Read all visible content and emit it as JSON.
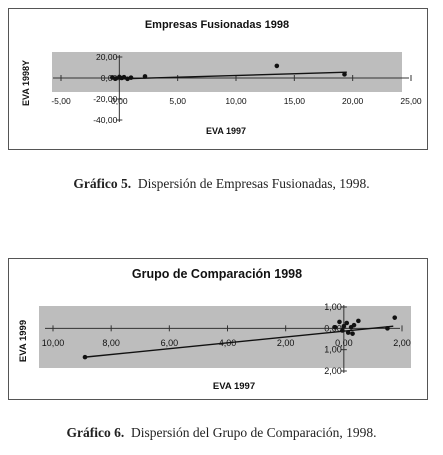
{
  "chart_data": [
    {
      "type": "scatter",
      "title": "Empresas Fusionadas 1998",
      "xlabel": "EVA 1997",
      "ylabel": "EVA 1998Y",
      "xlim": [
        -5,
        25
      ],
      "ylim": [
        -40,
        20
      ],
      "x_ticks": [
        -5,
        0,
        5,
        10,
        15,
        20,
        25
      ],
      "x_tick_labels": [
        "-5,00",
        "0,00",
        "5,00",
        "10,00",
        "15,00",
        "20,00",
        "25,00"
      ],
      "y_ticks": [
        20,
        0,
        -20,
        -40
      ],
      "y_tick_labels": [
        "20,00",
        "0,00",
        "-20,00",
        "-40,00"
      ],
      "points": [
        {
          "x": -0.6,
          "y": 0.5
        },
        {
          "x": -0.3,
          "y": -0.5
        },
        {
          "x": 0.0,
          "y": 1.0
        },
        {
          "x": 0.2,
          "y": 0.0
        },
        {
          "x": 0.4,
          "y": 0.8
        },
        {
          "x": 0.7,
          "y": -0.8
        },
        {
          "x": 1.0,
          "y": 0.3
        },
        {
          "x": 2.2,
          "y": 1.5
        },
        {
          "x": 13.5,
          "y": 11.5
        },
        {
          "x": 19.3,
          "y": 3.5
        }
      ],
      "trendline": {
        "x": [
          -0.5,
          19.5
        ],
        "y": [
          -1.0,
          5.5
        ]
      },
      "grid": false,
      "legend": "none"
    },
    {
      "type": "scatter",
      "title": "Grupo de Comparación 1998",
      "xlabel": "EVA 1997",
      "ylabel": "EVA 1999",
      "xlim": [
        -10,
        2
      ],
      "ylim": [
        -2,
        1
      ],
      "x_ticks": [
        -10,
        -8,
        -6,
        -4,
        -2,
        0,
        2
      ],
      "x_tick_labels": [
        "10,00",
        "8,00",
        "6,00",
        "4,00",
        "2,00",
        "0,00",
        "2,00"
      ],
      "y_ticks": [
        1,
        0,
        -1,
        -2
      ],
      "y_tick_labels": [
        "1,00",
        "0,00",
        "1,00",
        "2,00"
      ],
      "points": [
        {
          "x": -8.9,
          "y": -1.35
        },
        {
          "x": -0.3,
          "y": 0.05
        },
        {
          "x": -0.15,
          "y": 0.3
        },
        {
          "x": -0.05,
          "y": -0.1
        },
        {
          "x": 0.0,
          "y": 0.1
        },
        {
          "x": 0.1,
          "y": 0.25
        },
        {
          "x": 0.15,
          "y": -0.2
        },
        {
          "x": 0.25,
          "y": 0.05
        },
        {
          "x": 0.3,
          "y": -0.25
        },
        {
          "x": 0.35,
          "y": 0.15
        },
        {
          "x": 0.5,
          "y": 0.35
        },
        {
          "x": 1.5,
          "y": 0.0
        },
        {
          "x": 1.75,
          "y": 0.5
        }
      ],
      "trendline": {
        "x": [
          -8.9,
          1.7
        ],
        "y": [
          -1.35,
          0.1
        ]
      },
      "grid": false,
      "legend": "none"
    }
  ],
  "captions": [
    {
      "label": "Gráfico 5.",
      "text": "Dispersión de Empresas Fusionadas, 1998."
    },
    {
      "label": "Gráfico 6.",
      "text": "Dispersión del Grupo de Comparación, 1998."
    }
  ]
}
